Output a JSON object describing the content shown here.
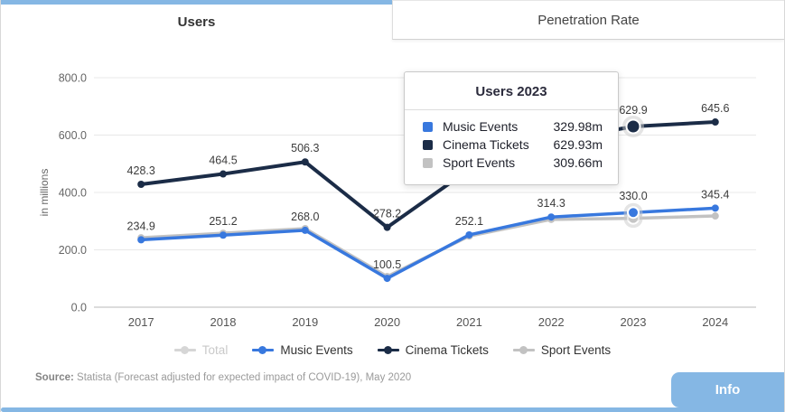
{
  "tabs": [
    {
      "label": "Users",
      "active": true
    },
    {
      "label": "Penetration Rate",
      "active": false
    }
  ],
  "colors": {
    "accent": "#85b7e4",
    "music": "#3878de",
    "cinema": "#1b2c47",
    "sport": "#c2c2c2",
    "disabled": "#d6d6d6",
    "grid": "#e8e8e8",
    "axis": "#b8b8b8",
    "tick_text": "#666666",
    "year_text": "#555555",
    "label_text": "#3c3c3c"
  },
  "chart_data": {
    "type": "line",
    "title": "Users",
    "x": [
      "2017",
      "2018",
      "2019",
      "2020",
      "2021",
      "2022",
      "2023",
      "2024"
    ],
    "ylabel": "in millions",
    "ylim": [
      0,
      800
    ],
    "yticks": [
      0,
      200,
      400,
      600,
      800
    ],
    "ytick_labels": [
      "0.0",
      "200.0",
      "400.0",
      "600.0",
      "800.0"
    ],
    "grid": true,
    "legend_position": "bottom",
    "highlight_index": 6,
    "highlight_x": "2023",
    "series": [
      {
        "name": "Total",
        "color": "disabled",
        "visible": false,
        "values": []
      },
      {
        "name": "Sport Events",
        "color": "sport",
        "values": [
          242,
          258,
          274,
          107,
          248,
          306,
          309.66,
          318
        ],
        "labels": [
          null,
          null,
          null,
          null,
          null,
          null,
          null,
          null
        ]
      },
      {
        "name": "Music Events",
        "color": "music",
        "values": [
          234.9,
          251.2,
          268.0,
          100.5,
          252.1,
          314.3,
          330.0,
          345.4
        ],
        "labels": [
          "234.9",
          "251.2",
          "268.0",
          "100.5",
          "252.1",
          "314.3",
          "330.0",
          "345.4"
        ]
      },
      {
        "name": "Cinema Tickets",
        "color": "cinema",
        "values": [
          428.3,
          464.5,
          506.3,
          278.2,
          480,
          578,
          629.9,
          645.6
        ],
        "labels": [
          "428.3",
          "464.5",
          "506.3",
          "278.2",
          null,
          null,
          "629.9",
          "645.6"
        ]
      }
    ]
  },
  "tooltip": {
    "title": "Users 2023",
    "rows": [
      {
        "label": "Music Events",
        "value": "329.98m",
        "color": "music"
      },
      {
        "label": "Cinema Tickets",
        "value": "629.93m",
        "color": "cinema"
      },
      {
        "label": "Sport Events",
        "value": "309.66m",
        "color": "sport"
      }
    ]
  },
  "legend": {
    "items": [
      {
        "label": "Total",
        "color": "disabled",
        "disabled": true
      },
      {
        "label": "Music Events",
        "color": "music",
        "disabled": false
      },
      {
        "label": "Cinema Tickets",
        "color": "cinema",
        "disabled": false
      },
      {
        "label": "Sport Events",
        "color": "sport",
        "disabled": false
      }
    ]
  },
  "source": {
    "prefix": "Source:",
    "text": " Statista (Forecast adjusted for expected impact of COVID-19), May 2020"
  },
  "info_button": {
    "label": "Info"
  }
}
